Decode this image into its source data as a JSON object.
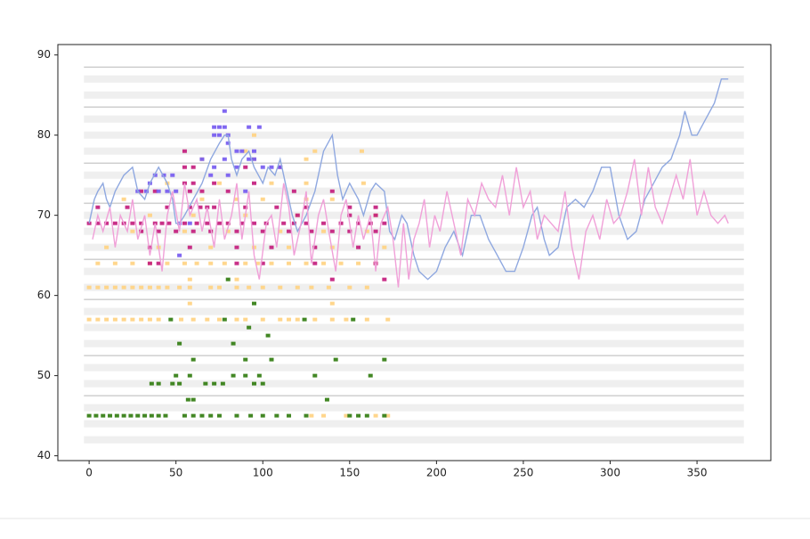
{
  "chart_data": {
    "type": "pianoroll",
    "xlim": [
      -18,
      392.5
    ],
    "ylim": [
      39.4,
      91.3
    ],
    "xticks": [
      0,
      50,
      100,
      150,
      200,
      250,
      300,
      350
    ],
    "yticks": [
      40,
      50,
      60,
      70,
      80,
      90
    ],
    "band_xlim": [
      -3,
      377
    ],
    "bands": [
      42,
      44,
      46,
      49,
      51,
      54,
      56,
      58,
      61,
      63,
      66,
      68,
      70,
      73,
      75,
      78,
      80,
      82,
      85,
      87
    ],
    "band_color": "#efefef",
    "octave_lines": [
      47.5,
      52.5,
      59.5,
      64.5,
      71.5,
      76.5,
      83.5,
      88.5
    ],
    "octave_line_color": "#b8b8b8",
    "lines": [
      {
        "color": "#8fa8e0",
        "x": [
          0,
          3,
          5,
          8,
          10,
          12,
          15,
          20,
          25,
          28,
          32,
          35,
          40,
          45,
          48,
          50,
          52,
          55,
          60,
          65,
          70,
          75,
          78,
          80,
          82,
          85,
          88,
          92,
          95,
          100,
          103,
          107,
          110,
          113,
          117,
          120,
          125,
          130,
          135,
          140,
          143,
          146,
          150,
          155,
          158,
          162,
          165,
          170,
          173,
          176,
          180,
          183,
          187,
          190,
          195,
          200,
          205,
          210,
          215,
          220,
          225,
          230,
          235,
          240,
          245,
          250,
          255,
          258,
          262,
          265,
          270,
          275,
          280,
          285,
          290,
          295,
          300,
          305,
          310,
          315,
          320,
          325,
          330,
          335,
          340,
          343,
          347,
          350,
          355,
          360,
          364,
          368
        ],
        "values": [
          69,
          72,
          73,
          74,
          72,
          71,
          73,
          75,
          76,
          73,
          72,
          74,
          76,
          74,
          72,
          69,
          69,
          70,
          72,
          74,
          77,
          79,
          80,
          80,
          77,
          75,
          77,
          78,
          76,
          74,
          76,
          75,
          77,
          74,
          70,
          68,
          70,
          73,
          78,
          80,
          75,
          72,
          74,
          72,
          70,
          73,
          74,
          73,
          68,
          67,
          70,
          69,
          65,
          63,
          62,
          63,
          66,
          68,
          65,
          70,
          70,
          67,
          65,
          63,
          63,
          66,
          70,
          71,
          67,
          65,
          66,
          71,
          72,
          71,
          73,
          76,
          76,
          70,
          67,
          68,
          72,
          74,
          76,
          77,
          80,
          83,
          80,
          80,
          82,
          84,
          87,
          87
        ]
      },
      {
        "color": "#f0a0d8",
        "x": [
          2,
          5,
          8,
          12,
          15,
          18,
          22,
          25,
          28,
          32,
          35,
          38,
          42,
          45,
          48,
          52,
          55,
          58,
          62,
          65,
          68,
          72,
          75,
          78,
          82,
          85,
          88,
          92,
          95,
          98,
          102,
          105,
          108,
          112,
          115,
          118,
          122,
          125,
          128,
          132,
          135,
          138,
          142,
          145,
          148,
          152,
          155,
          158,
          162,
          165,
          168,
          172,
          175,
          178,
          181,
          184,
          187,
          190,
          193,
          196,
          199,
          202,
          206,
          210,
          214,
          218,
          222,
          226,
          230,
          234,
          238,
          242,
          246,
          250,
          254,
          258,
          262,
          266,
          270,
          274,
          278,
          282,
          286,
          290,
          294,
          298,
          302,
          306,
          310,
          314,
          318,
          322,
          326,
          330,
          334,
          338,
          342,
          346,
          350,
          354,
          358,
          362,
          366,
          368
        ],
        "values": [
          67,
          70,
          68,
          71,
          66,
          70,
          68,
          72,
          67,
          70,
          65,
          69,
          63,
          70,
          73,
          68,
          74,
          70,
          72,
          68,
          71,
          66,
          72,
          67,
          70,
          74,
          67,
          73,
          65,
          62,
          69,
          70,
          66,
          74,
          71,
          65,
          69,
          73,
          64,
          70,
          72,
          68,
          63,
          70,
          72,
          66,
          70,
          67,
          70,
          63,
          69,
          71,
          67,
          61,
          69,
          62,
          67,
          69,
          72,
          66,
          70,
          68,
          73,
          69,
          65,
          72,
          70,
          74,
          72,
          71,
          75,
          70,
          76,
          71,
          73,
          67,
          70,
          69,
          68,
          73,
          66,
          62,
          68,
          70,
          67,
          72,
          69,
          70,
          73,
          77,
          70,
          76,
          71,
          69,
          72,
          75,
          72,
          77,
          70,
          73,
          70,
          69,
          70,
          69
        ]
      }
    ],
    "note_groups": [
      {
        "color": "#ffd27f",
        "rows": [
          {
            "pitch": 45,
            "x": [
              128,
              135,
              148,
              165,
              172
            ]
          },
          {
            "pitch": 57,
            "x": [
              0,
              5,
              10,
              15,
              20,
              25,
              30,
              35,
              40,
              53,
              60,
              68,
              75,
              85,
              90,
              100,
              110,
              115,
              120,
              130,
              140,
              148,
              160,
              172
            ]
          },
          {
            "pitch": 59,
            "x": [
              58,
              140
            ]
          },
          {
            "pitch": 61,
            "x": [
              0,
              5,
              10,
              15,
              20,
              25,
              30,
              35,
              40,
              45,
              52,
              58,
              70,
              75,
              85,
              92,
              100,
              110,
              120,
              128,
              138,
              150,
              160
            ]
          },
          {
            "pitch": 62,
            "x": [
              58,
              85
            ]
          },
          {
            "pitch": 64,
            "x": [
              5,
              15,
              25,
              35,
              45,
              55,
              62,
              70,
              78,
              90,
              97,
              105,
              115,
              125,
              135,
              145,
              155,
              165
            ]
          },
          {
            "pitch": 66,
            "x": [
              10,
              40,
              70,
              95,
              115,
              140,
              170
            ]
          },
          {
            "pitch": 68,
            "x": [
              25,
              55,
              80,
              110,
              135,
              160
            ]
          },
          {
            "pitch": 70,
            "x": [
              35,
              60,
              90,
              120,
              165
            ]
          },
          {
            "pitch": 72,
            "x": [
              20,
              65,
              85,
              100,
              125,
              140
            ]
          },
          {
            "pitch": 74,
            "x": [
              45,
              75,
              105,
              125,
              158
            ]
          },
          {
            "pitch": 77,
            "x": [
              65,
              95,
              125
            ]
          },
          {
            "pitch": 78,
            "x": [
              90,
              130,
              157
            ]
          },
          {
            "pitch": 80,
            "x": [
              95
            ]
          }
        ]
      },
      {
        "color": "#2d7a0c",
        "rows": [
          {
            "pitch": 45,
            "x": [
              0,
              4,
              8,
              12,
              16,
              20,
              24,
              28,
              32,
              36,
              40,
              44,
              55,
              60,
              65,
              70,
              75,
              85,
              93,
              100,
              108,
              115,
              125,
              150,
              155,
              160,
              170
            ]
          },
          {
            "pitch": 47,
            "x": [
              57,
              60,
              137
            ]
          },
          {
            "pitch": 49,
            "x": [
              36,
              40,
              48,
              52,
              67,
              72,
              77,
              95,
              100
            ]
          },
          {
            "pitch": 50,
            "x": [
              50,
              58,
              83,
              90,
              98,
              130,
              162
            ]
          },
          {
            "pitch": 52,
            "x": [
              60,
              90,
              105,
              142,
              170
            ]
          },
          {
            "pitch": 54,
            "x": [
              52,
              83
            ]
          },
          {
            "pitch": 55,
            "x": [
              103
            ]
          },
          {
            "pitch": 56,
            "x": [
              92
            ]
          },
          {
            "pitch": 57,
            "x": [
              47,
              78,
              124,
              152
            ]
          },
          {
            "pitch": 59,
            "x": [
              95
            ]
          },
          {
            "pitch": 62,
            "x": [
              80
            ]
          }
        ]
      },
      {
        "color": "#c2187a",
        "rows": [
          {
            "pitch": 62,
            "x": [
              140,
              170
            ]
          },
          {
            "pitch": 64,
            "x": [
              35,
              40,
              85,
              100,
              130,
              165
            ]
          },
          {
            "pitch": 66,
            "x": [
              35,
              58,
              85,
              105,
              130,
              155
            ]
          },
          {
            "pitch": 68,
            "x": [
              30,
              40,
              50,
              60,
              70,
              85,
              100,
              115,
              128,
              140,
              150,
              165
            ]
          },
          {
            "pitch": 69,
            "x": [
              0,
              5,
              10,
              15,
              20,
              25,
              30,
              38,
              42,
              46,
              55,
              62,
              68,
              75,
              80,
              88,
              95,
              102,
              112,
              118,
              125,
              135,
              145,
              155,
              162,
              170
            ]
          },
          {
            "pitch": 70,
            "x": [
              120,
              150,
              165
            ]
          },
          {
            "pitch": 71,
            "x": [
              5,
              22,
              45,
              58,
              64,
              68,
              72,
              90,
              108,
              125,
              150,
              165
            ]
          },
          {
            "pitch": 73,
            "x": [
              30,
              38,
              58,
              65,
              80,
              118,
              140
            ]
          },
          {
            "pitch": 74,
            "x": [
              55,
              60,
              72,
              95
            ]
          },
          {
            "pitch": 76,
            "x": [
              55,
              60,
              90,
              110
            ]
          },
          {
            "pitch": 78,
            "x": [
              55
            ]
          }
        ]
      },
      {
        "color": "#7358f0",
        "rows": [
          {
            "pitch": 65,
            "x": [
              52
            ]
          },
          {
            "pitch": 69,
            "x": [
              52,
              58
            ]
          },
          {
            "pitch": 73,
            "x": [
              28,
              33,
              40,
              45,
              50,
              90
            ]
          },
          {
            "pitch": 74,
            "x": [
              35
            ]
          },
          {
            "pitch": 75,
            "x": [
              38,
              43,
              48,
              70,
              80
            ]
          },
          {
            "pitch": 76,
            "x": [
              72,
              85,
              100,
              105,
              110
            ]
          },
          {
            "pitch": 77,
            "x": [
              65,
              78,
              92,
              95
            ]
          },
          {
            "pitch": 78,
            "x": [
              85,
              88,
              95
            ]
          },
          {
            "pitch": 79,
            "x": [
              80
            ]
          },
          {
            "pitch": 80,
            "x": [
              72,
              75,
              80
            ]
          },
          {
            "pitch": 81,
            "x": [
              72,
              75,
              78,
              92,
              98
            ]
          },
          {
            "pitch": 83,
            "x": [
              78
            ]
          }
        ]
      }
    ]
  }
}
